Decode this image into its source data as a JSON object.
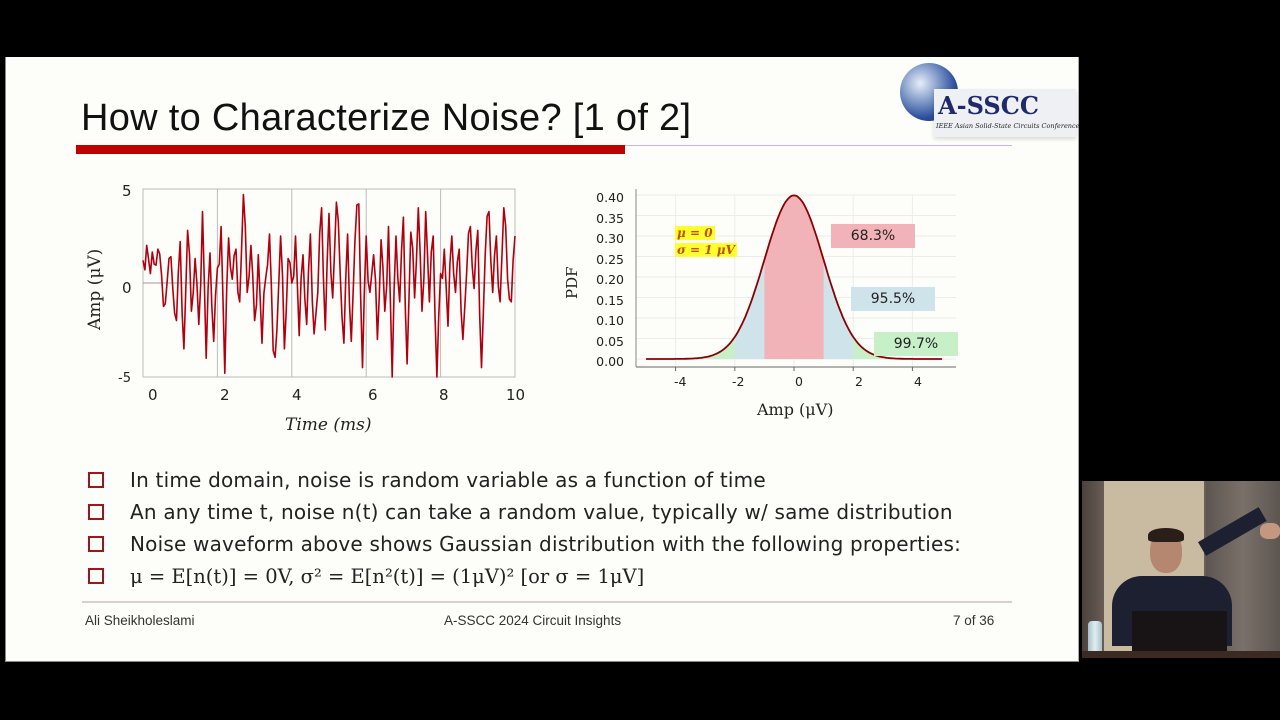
{
  "slide": {
    "title": "How to Characterize Noise? [1 of 2]",
    "logo": {
      "name": "A-SSCC",
      "subtitle": "IEEE Asian Solid-State Circuits Conference"
    },
    "bullets": [
      "In time domain, noise is random variable as a function of time",
      "An any time t, noise n(t) can take a random value, typically w/ same distribution",
      "Noise waveform above shows Gaussian distribution with the following properties:",
      "μ = E[n(t)] = 0V,   σ² = E[n²(t)] = (1μV)² [or σ = 1μV]"
    ],
    "footer": {
      "author": "Ali Sheikholeslami",
      "event": "A-SSCC 2024 Circuit Insights",
      "page": "7 of 36"
    }
  },
  "colors": {
    "title_bar": "#c00000",
    "waveform": "#b00010",
    "pdf_curve": "#8b0000",
    "band_1sigma": "#f2b3b8",
    "band_2sigma": "#cfe3ea",
    "band_3sigma": "#c8f0c8",
    "bullet_box": "#a0141e",
    "highlight": "#ffff30"
  },
  "chart_data": [
    {
      "type": "line",
      "title": "",
      "xlabel": "Time (ms)",
      "ylabel": "Amp (μV)",
      "xlim": [
        0,
        10
      ],
      "ylim": [
        -5,
        5
      ],
      "xticks": [
        "0",
        "2",
        "4",
        "6",
        "8",
        "10"
      ],
      "yticks": [
        "5",
        "0",
        "-5"
      ],
      "grid": true,
      "series": [
        {
          "name": "noise waveform",
          "description": "Gaussian random noise, μ=0, σ=1μV, ~300 samples",
          "x": [
            0,
            0.1,
            0.2,
            0.3,
            0.4,
            0.5,
            0.6,
            0.7,
            0.8,
            0.9,
            1.0,
            1.1,
            1.2,
            1.3,
            1.4,
            1.5,
            1.6,
            1.7,
            1.8,
            1.9,
            2.0,
            2.1,
            2.2,
            2.3,
            2.4,
            2.5,
            2.6,
            2.7,
            2.8,
            2.9,
            3.0,
            3.1,
            3.2,
            3.3,
            3.4,
            3.5,
            3.6,
            3.7,
            3.8,
            3.9,
            4.0,
            4.1,
            4.2,
            4.3,
            4.4,
            4.5,
            4.6,
            4.7,
            4.8,
            4.9,
            5.0,
            5.1,
            5.2,
            5.3,
            5.4,
            5.5,
            5.6,
            5.7,
            5.8,
            5.9,
            6.0,
            6.1,
            6.2,
            6.3,
            6.4,
            6.5,
            6.6,
            6.7,
            6.8,
            6.9,
            7.0,
            7.1,
            7.2,
            7.3,
            7.4,
            7.5,
            7.6,
            7.7,
            7.8,
            7.9,
            8.0,
            8.1,
            8.2,
            8.3,
            8.4,
            8.5,
            8.6,
            8.7,
            8.8,
            8.9,
            9.0,
            9.1,
            9.2,
            9.3,
            9.4,
            9.5,
            9.6,
            9.7,
            9.8,
            9.9,
            10.0
          ],
          "values": [
            1.2,
            2.0,
            0.5,
            1.0,
            1.8,
            0.4,
            -1.1,
            1.3,
            -0.3,
            -2.0,
            2.2,
            -3.5,
            2.8,
            -1.5,
            1.3,
            -2.2,
            3.8,
            -4.0,
            1.6,
            -3.1,
            0.8,
            3.0,
            -4.8,
            2.4,
            0.2,
            1.8,
            -1.0,
            4.7,
            -0.5,
            2.0,
            -2.0,
            1.5,
            -3.2,
            0.3,
            2.6,
            -3.6,
            -2.5,
            2.5,
            -3.5,
            1.3,
            0.0,
            2.5,
            -2.8,
            1.5,
            -2.2,
            2.6,
            -2.7,
            -0.5,
            4.0,
            -2.5,
            3.7,
            -0.8,
            4.3,
            0.5,
            -3.2,
            2.6,
            -3.1,
            2.3,
            4.2,
            -4.5,
            2.5,
            -0.5,
            1.5,
            -3.0,
            2.3,
            -1.5,
            3.0,
            -5.0,
            2.5,
            -1.0,
            3.5,
            -4.3,
            2.7,
            -0.8,
            4.0,
            -1.5,
            3.8,
            -1.0,
            2.5,
            -5.0,
            0.5,
            1.8,
            -2.3,
            2.5,
            -0.5,
            1.8,
            -3.0,
            0.5,
            3.0,
            -0.3,
            2.8,
            -4.5,
            1.5,
            3.8,
            -0.5,
            2.5,
            -1.0,
            4.0,
            0.2,
            -1.0,
            2.5
          ]
        }
      ]
    },
    {
      "type": "area",
      "title": "",
      "xlabel": "Amp (μV)",
      "ylabel": "PDF",
      "xlim": [
        -5,
        5
      ],
      "ylim": [
        0,
        0.4
      ],
      "xticks": [
        "-4",
        "-2",
        "0",
        "2",
        "4"
      ],
      "yticks": [
        "0.40",
        "0.35",
        "0.30",
        "0.25",
        "0.20",
        "0.15",
        "0.10",
        "0.05",
        "0.00"
      ],
      "grid": true,
      "annotations": {
        "mu": "μ = 0",
        "sigma": "σ = 1 μV"
      },
      "series": [
        {
          "name": "Gaussian PDF",
          "x": [
            -5,
            -4.5,
            -4,
            -3.5,
            -3,
            -2.5,
            -2,
            -1.5,
            -1,
            -0.5,
            0,
            0.5,
            1,
            1.5,
            2,
            2.5,
            3,
            3.5,
            4,
            4.5,
            5
          ],
          "values": [
            0.0,
            0.0,
            0.0001,
            0.0009,
            0.0044,
            0.0175,
            0.054,
            0.1295,
            0.242,
            0.3521,
            0.3989,
            0.3521,
            0.242,
            0.1295,
            0.054,
            0.0175,
            0.0044,
            0.0009,
            0.0001,
            0.0,
            0.0
          ]
        }
      ],
      "bands": [
        {
          "label": "68.3%",
          "range": [
            -1,
            1
          ],
          "color": "#f2b3b8"
        },
        {
          "label": "95.5%",
          "range": [
            -2,
            2
          ],
          "color": "#cfe3ea"
        },
        {
          "label": "99.7%",
          "range": [
            -3,
            3
          ],
          "color": "#c8f0c8"
        }
      ]
    }
  ]
}
